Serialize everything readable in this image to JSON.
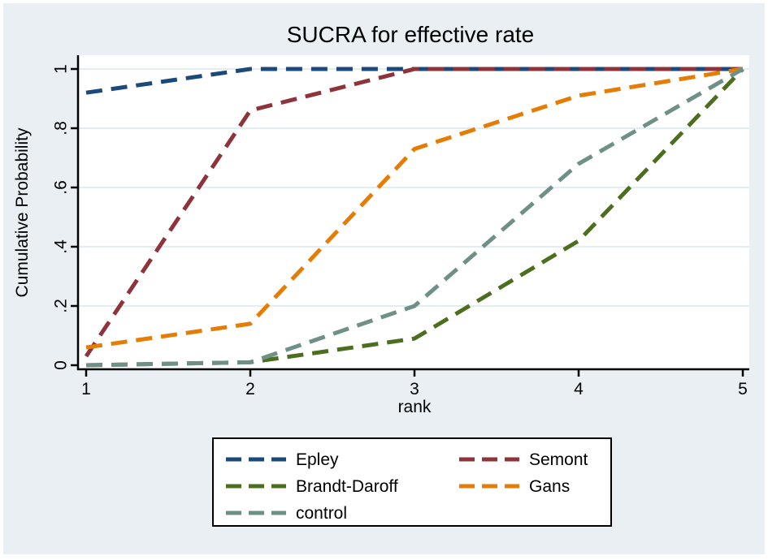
{
  "figure": {
    "title": "SUCRA for effective rate"
  },
  "chart_data": {
    "type": "line",
    "title": "SUCRA for effective rate",
    "xlabel": "rank",
    "ylabel": "Cumulative Probability",
    "x": [
      1,
      2,
      3,
      4,
      5
    ],
    "xlim": [
      1,
      5
    ],
    "ylim": [
      0,
      1
    ],
    "x_tick_labels": [
      "1",
      "2",
      "3",
      "4",
      "5"
    ],
    "y_ticks": [
      0,
      0.2,
      0.4,
      0.6,
      0.8,
      1
    ],
    "y_tick_labels": [
      "0",
      ".2",
      ".4",
      ".6",
      ".8",
      "1"
    ],
    "grid": "horizontal-gridlines-at-y-ticks",
    "line_style": "dashed",
    "legend_position": "below-plot-boxed",
    "legend_columns": 2,
    "series": [
      {
        "name": "Epley",
        "color": "#1b4979",
        "values": [
          0.92,
          1.0,
          1.0,
          1.0,
          1.0
        ]
      },
      {
        "name": "Semont",
        "color": "#8e3339",
        "values": [
          0.03,
          0.86,
          1.0,
          1.0,
          1.0
        ]
      },
      {
        "name": "Brandt-Daroff",
        "color": "#4c6e1f",
        "values": [
          0.0,
          0.01,
          0.09,
          0.42,
          1.0
        ]
      },
      {
        "name": "Gans",
        "color": "#e57d05",
        "values": [
          0.06,
          0.14,
          0.73,
          0.91,
          1.0
        ]
      },
      {
        "name": "control",
        "color": "#6f9087",
        "values": [
          0.0,
          0.01,
          0.2,
          0.68,
          1.0
        ]
      }
    ]
  },
  "colors": {
    "figure_background": "#e9eff2",
    "plot_background": "#ffffff",
    "gridline": "#e2edf2",
    "axis": "#000000",
    "title_text": "#182a54",
    "tick_text": "#000000",
    "legend_background": "#ffffff",
    "legend_border": "#000000"
  }
}
